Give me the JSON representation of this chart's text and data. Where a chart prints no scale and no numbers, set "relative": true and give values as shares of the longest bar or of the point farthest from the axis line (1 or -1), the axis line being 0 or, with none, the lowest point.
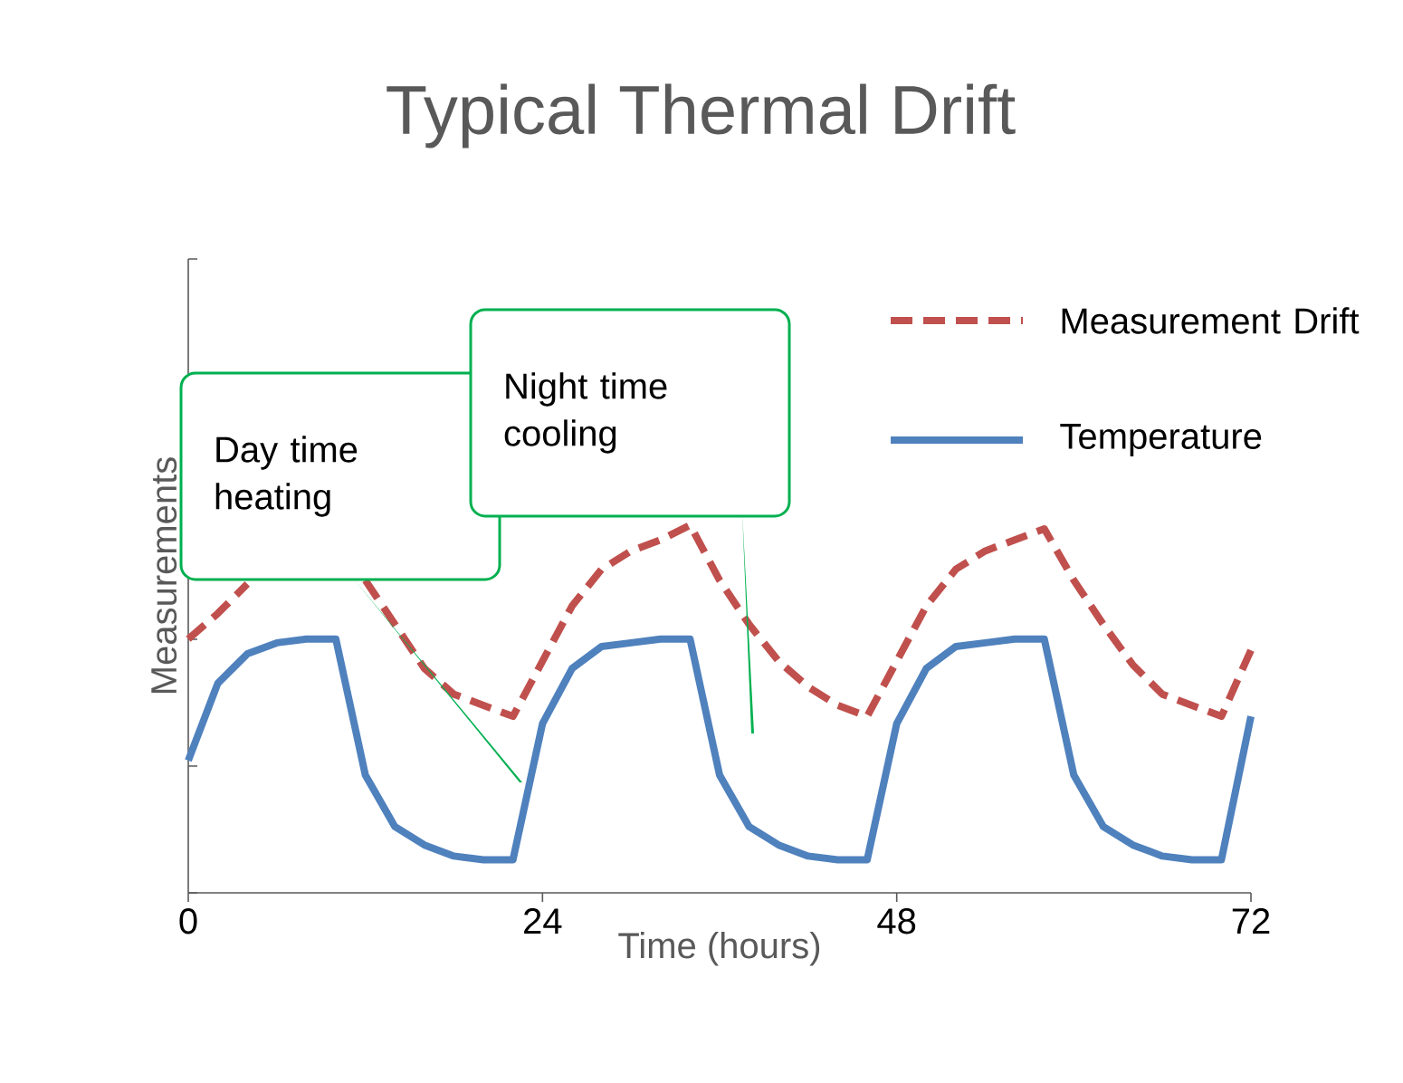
{
  "chart_data": {
    "type": "line",
    "title": "Typical Thermal Drift",
    "xlabel": "Time (hours)",
    "ylabel": "Measurements",
    "relative": true,
    "xlim": [
      0,
      72
    ],
    "xticks": [
      0,
      24,
      48,
      72
    ],
    "legend": "top right",
    "x": [
      0,
      2,
      4,
      6,
      8,
      10,
      12,
      14,
      16,
      18,
      20,
      22,
      24,
      26,
      28,
      30,
      32,
      34,
      36,
      38,
      40,
      42,
      44,
      46,
      48,
      50,
      52,
      54,
      56,
      58,
      60,
      62,
      64,
      66,
      68,
      70,
      72
    ],
    "series": [
      {
        "name": "Measurement Drift",
        "color": "#c0504d",
        "line_style": "dashed",
        "values": [
          0.69,
          0.76,
          0.84,
          null,
          null,
          null,
          0.85,
          0.73,
          0.61,
          0.54,
          0.51,
          0.48,
          0.63,
          0.78,
          0.88,
          0.93,
          0.96,
          1.0,
          0.85,
          0.73,
          0.63,
          0.56,
          0.51,
          0.48,
          0.63,
          0.78,
          0.88,
          0.93,
          0.96,
          0.99,
          0.85,
          0.73,
          0.62,
          0.54,
          0.51,
          0.48,
          0.66
        ]
      },
      {
        "name": "Temperature",
        "color": "#4f81bd",
        "line_style": "solid",
        "values": [
          0.36,
          0.57,
          0.65,
          0.68,
          0.69,
          0.69,
          0.32,
          0.18,
          0.13,
          0.1,
          0.09,
          0.09,
          0.46,
          0.61,
          0.67,
          0.68,
          0.69,
          0.69,
          0.32,
          0.18,
          0.13,
          0.1,
          0.09,
          0.09,
          0.46,
          0.61,
          0.67,
          0.68,
          0.69,
          0.69,
          0.32,
          0.18,
          0.13,
          0.1,
          0.09,
          0.09,
          0.48
        ]
      }
    ],
    "annotations": [
      "Day time heating",
      "Night time cooling"
    ]
  }
}
